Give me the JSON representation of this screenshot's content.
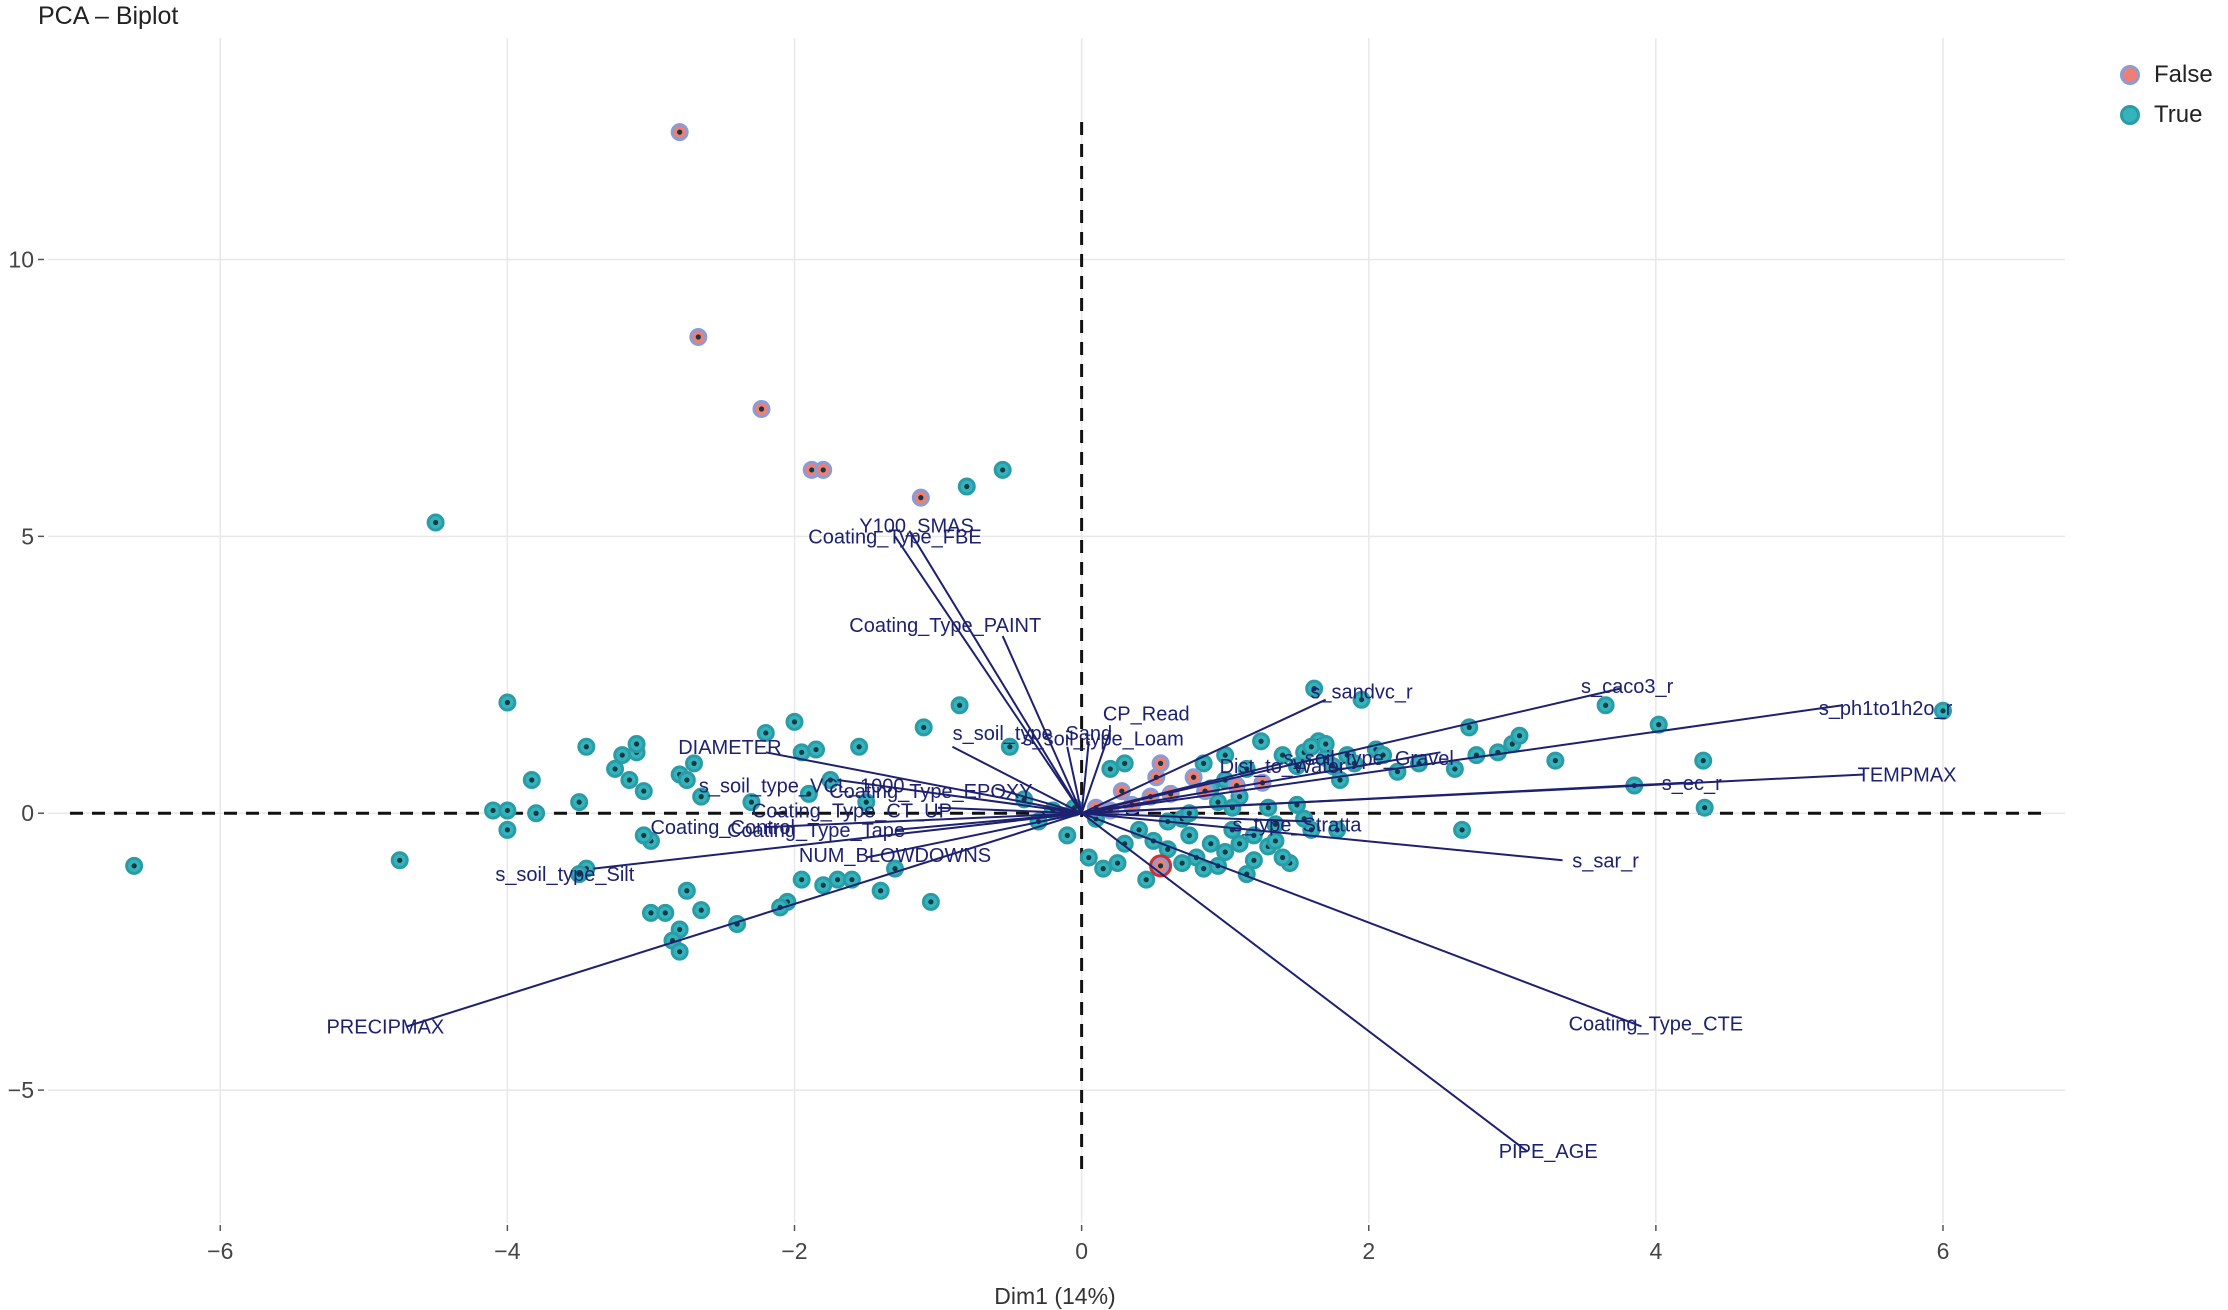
{
  "chart_data": {
    "type": "scatter",
    "title": "PCA – Biplot",
    "xlabel": "Dim1 (14%)",
    "ylabel": "",
    "xlim": [
      -7.2,
      6.85
    ],
    "ylim": [
      -7.4,
      14
    ],
    "xticks": [
      -6,
      -4,
      -2,
      0,
      2,
      4,
      6
    ],
    "yticks": [
      -5,
      0,
      5,
      10
    ],
    "grid": true,
    "legend_position": "top-right",
    "colors": {
      "false_fill": "#ef7f74",
      "false_stroke": "#8a9cd6",
      "true_fill": "#35b3bd",
      "true_stroke": "#2a9ca6",
      "arrow": "#1d2170",
      "label": "#1d2170",
      "center": "#0f3a42"
    },
    "series": [
      {
        "name": "False",
        "points": [
          [
            -2.8,
            12.3
          ],
          [
            -2.67,
            8.6
          ],
          [
            -2.23,
            7.3
          ],
          [
            -1.88,
            6.2
          ],
          [
            -1.8,
            6.2
          ],
          [
            -1.12,
            5.7
          ],
          [
            0.28,
            0.4
          ],
          [
            0.48,
            0.3
          ],
          [
            0.62,
            0.35
          ],
          [
            0.52,
            0.65
          ],
          [
            0.78,
            0.65
          ],
          [
            0.86,
            0.4
          ],
          [
            1.08,
            0.5
          ],
          [
            1.26,
            0.55
          ],
          [
            0.1,
            0.1
          ],
          [
            0.2,
            0.05
          ],
          [
            0.35,
            0.15
          ],
          [
            0.55,
            0.9
          ],
          [
            0.55,
            -0.95
          ]
        ]
      },
      {
        "name": "True",
        "points": [
          [
            -6.6,
            -0.95
          ],
          [
            -4.5,
            5.25
          ],
          [
            -4.75,
            -0.85
          ],
          [
            -4.0,
            2.0
          ],
          [
            -4.1,
            0.05
          ],
          [
            -4.0,
            0.05
          ],
          [
            -4.0,
            -0.3
          ],
          [
            -3.83,
            0.6
          ],
          [
            -3.8,
            0.0
          ],
          [
            -3.45,
            1.2
          ],
          [
            -3.5,
            0.2
          ],
          [
            -3.45,
            -1.0
          ],
          [
            -3.5,
            -1.1
          ],
          [
            -3.25,
            0.8
          ],
          [
            -3.2,
            1.05
          ],
          [
            -3.1,
            1.1
          ],
          [
            -3.1,
            1.25
          ],
          [
            -3.15,
            0.6
          ],
          [
            -3.05,
            0.4
          ],
          [
            -3.0,
            -0.5
          ],
          [
            -3.05,
            -0.4
          ],
          [
            -3.0,
            -1.8
          ],
          [
            -2.9,
            -1.8
          ],
          [
            -2.8,
            0.7
          ],
          [
            -2.75,
            0.6
          ],
          [
            -2.7,
            0.9
          ],
          [
            -2.65,
            0.3
          ],
          [
            -2.8,
            -2.1
          ],
          [
            -2.85,
            -2.3
          ],
          [
            -2.8,
            -2.5
          ],
          [
            -2.75,
            -1.4
          ],
          [
            -2.65,
            -1.75
          ],
          [
            -2.4,
            -2.0
          ],
          [
            -2.3,
            0.2
          ],
          [
            -2.2,
            1.45
          ],
          [
            -2.0,
            1.65
          ],
          [
            -1.95,
            1.1
          ],
          [
            -1.85,
            1.15
          ],
          [
            -1.75,
            0.6
          ],
          [
            -1.9,
            0.35
          ],
          [
            -2.05,
            -1.6
          ],
          [
            -2.1,
            -1.7
          ],
          [
            -1.95,
            -1.2
          ],
          [
            -1.8,
            -1.3
          ],
          [
            -1.7,
            -1.2
          ],
          [
            -1.6,
            -1.2
          ],
          [
            -1.55,
            1.2
          ],
          [
            -1.5,
            0.2
          ],
          [
            -1.4,
            -1.4
          ],
          [
            -1.3,
            -1.0
          ],
          [
            -1.1,
            1.55
          ],
          [
            -1.05,
            -1.6
          ],
          [
            -0.85,
            1.95
          ],
          [
            -0.8,
            5.9
          ],
          [
            -0.55,
            6.2
          ],
          [
            -0.5,
            1.2
          ],
          [
            -0.4,
            0.25
          ],
          [
            -0.3,
            -0.15
          ],
          [
            -0.2,
            0.05
          ],
          [
            -0.1,
            -0.4
          ],
          [
            -0.05,
            0.1
          ],
          [
            0.05,
            -0.8
          ],
          [
            0.1,
            -0.1
          ],
          [
            0.15,
            -1.0
          ],
          [
            0.25,
            -0.9
          ],
          [
            0.3,
            -0.55
          ],
          [
            0.4,
            -0.3
          ],
          [
            0.45,
            -1.2
          ],
          [
            0.6,
            -0.15
          ],
          [
            0.7,
            -0.1
          ],
          [
            0.75,
            0.0
          ],
          [
            0.8,
            -0.8
          ],
          [
            0.85,
            -1.0
          ],
          [
            0.9,
            -0.55
          ],
          [
            0.95,
            0.2
          ],
          [
            1.0,
            1.05
          ],
          [
            1.0,
            -0.7
          ],
          [
            1.05,
            -0.3
          ],
          [
            1.1,
            0.3
          ],
          [
            1.15,
            -1.1
          ],
          [
            1.2,
            -0.4
          ],
          [
            1.25,
            1.3
          ],
          [
            1.3,
            -0.6
          ],
          [
            1.35,
            -0.2
          ],
          [
            1.4,
            1.05
          ],
          [
            1.45,
            -0.9
          ],
          [
            1.5,
            0.15
          ],
          [
            1.55,
            1.1
          ],
          [
            1.6,
            -0.3
          ],
          [
            1.62,
            2.25
          ],
          [
            1.65,
            1.3
          ],
          [
            1.7,
            1.0
          ],
          [
            1.75,
            0.85
          ],
          [
            1.78,
            -0.3
          ],
          [
            1.85,
            1.05
          ],
          [
            1.9,
            0.9
          ],
          [
            1.95,
            2.05
          ],
          [
            2.05,
            1.15
          ],
          [
            2.1,
            1.05
          ],
          [
            2.2,
            0.75
          ],
          [
            2.35,
            0.9
          ],
          [
            2.6,
            0.8
          ],
          [
            2.7,
            1.55
          ],
          [
            2.75,
            1.05
          ],
          [
            2.9,
            1.1
          ],
          [
            3.0,
            1.25
          ],
          [
            3.05,
            1.4
          ],
          [
            2.65,
            -0.3
          ],
          [
            3.3,
            0.95
          ],
          [
            3.65,
            1.95
          ],
          [
            3.85,
            0.5
          ],
          [
            4.02,
            1.6
          ],
          [
            4.33,
            0.95
          ],
          [
            4.34,
            0.1
          ],
          [
            6.0,
            1.85
          ],
          [
            0.9,
            0.45
          ],
          [
            1.0,
            0.6
          ],
          [
            1.05,
            0.1
          ],
          [
            1.1,
            -0.55
          ],
          [
            1.15,
            0.8
          ],
          [
            1.2,
            -0.85
          ],
          [
            1.3,
            0.1
          ],
          [
            1.35,
            -0.5
          ],
          [
            1.4,
            -0.8
          ],
          [
            1.5,
            0.85
          ],
          [
            1.55,
            -0.1
          ],
          [
            1.6,
            1.2
          ],
          [
            1.7,
            1.25
          ],
          [
            1.8,
            0.6
          ],
          [
            0.2,
            0.8
          ],
          [
            0.3,
            0.9
          ],
          [
            0.5,
            -0.5
          ],
          [
            0.6,
            -0.65
          ],
          [
            0.7,
            -0.9
          ],
          [
            0.75,
            -0.4
          ],
          [
            0.85,
            0.9
          ],
          [
            0.95,
            -0.95
          ]
        ]
      }
    ],
    "loadings": [
      {
        "name": "Y100_SMAS",
        "x": -1.2,
        "y": 5.1,
        "lx": -1.15,
        "ly": 5.2
      },
      {
        "name": "Coating_Type_FBE",
        "x": -1.3,
        "y": 5.0,
        "lx": -1.3,
        "ly": 5.0
      },
      {
        "name": "Coating_Type_PAINT",
        "x": -0.55,
        "y": 3.2,
        "lx": -0.95,
        "ly": 3.4
      },
      {
        "name": "CP_Read",
        "x": 0.2,
        "y": 1.5,
        "lx": 0.45,
        "ly": 1.8
      },
      {
        "name": "Sand",
        "x": 0.05,
        "y": 1.3,
        "lx": 0.05,
        "ly": 1.45
      },
      {
        "name": "s_soil_type_Loam",
        "x": -0.1,
        "y": 1.2,
        "lx": 0.15,
        "ly": 1.35
      },
      {
        "name": "s_soil_type",
        "x": -0.9,
        "y": 1.2,
        "lx": -0.55,
        "ly": 1.45
      },
      {
        "name": "s_sandvc_r",
        "x": 1.7,
        "y": 2.05,
        "lx": 1.95,
        "ly": 2.2
      },
      {
        "name": "s_caco3_r",
        "x": 3.75,
        "y": 2.25,
        "lx": 3.8,
        "ly": 2.3
      },
      {
        "name": "s_ph1to1h2o_r",
        "x": 5.3,
        "y": 1.95,
        "lx": 5.6,
        "ly": 1.9
      },
      {
        "name": "TEMPMAX",
        "x": 5.45,
        "y": 0.7,
        "lx": 5.75,
        "ly": 0.7
      },
      {
        "name": "s_ec_r",
        "x": 4.2,
        "y": 0.55,
        "lx": 4.25,
        "ly": 0.55
      },
      {
        "name": "s_sar_r",
        "x": 3.35,
        "y": -0.85,
        "lx": 3.65,
        "ly": -0.85
      },
      {
        "name": "Coating_Type_CTE",
        "x": 3.9,
        "y": -3.85,
        "lx": 4.0,
        "ly": -3.8
      },
      {
        "name": "PIPE_AGE",
        "x": 3.1,
        "y": -6.1,
        "lx": 3.25,
        "ly": -6.1
      },
      {
        "name": "PRECIPMAX",
        "x": -4.7,
        "y": -3.85,
        "lx": -4.85,
        "ly": -3.85
      },
      {
        "name": "DIAMETER",
        "x": -2.2,
        "y": 1.1,
        "lx": -2.45,
        "ly": 1.2
      },
      {
        "name": "s_soil_type_Silt",
        "x": -3.4,
        "y": -1.0,
        "lx": -3.6,
        "ly": -1.1
      },
      {
        "name": "NUM_BLOWDOWNS",
        "x": -1.5,
        "y": -0.8,
        "lx": -1.3,
        "ly": -0.75
      },
      {
        "name": "s_soil_type_VCL_1000",
        "x": -1.7,
        "y": 0.6,
        "lx": -1.95,
        "ly": 0.5
      },
      {
        "name": "Coating_Type_EPOXY",
        "x": -0.6,
        "y": 0.45,
        "lx": -1.05,
        "ly": 0.4
      },
      {
        "name": "Coating_Type_CT_UP",
        "x": -1.0,
        "y": 0.1,
        "lx": -1.6,
        "ly": 0.05
      },
      {
        "name": "Coating_Type_Tape",
        "x": -1.3,
        "y": -0.3,
        "lx": -1.85,
        "ly": -0.3
      },
      {
        "name": "Coating_Control",
        "x": -2.2,
        "y": -0.25,
        "lx": -2.5,
        "ly": -0.25
      },
      {
        "name": "Dist_to_Water",
        "x": 1.4,
        "y": 0.9,
        "lx": 1.4,
        "ly": 0.85
      },
      {
        "name": "s_soil_type_Gravel",
        "x": 2.5,
        "y": 1.1,
        "lx": 2.0,
        "ly": 1.0
      },
      {
        "name": "s_type_Stratta",
        "x": 1.6,
        "y": -0.15,
        "lx": 1.5,
        "ly": -0.2
      }
    ]
  }
}
